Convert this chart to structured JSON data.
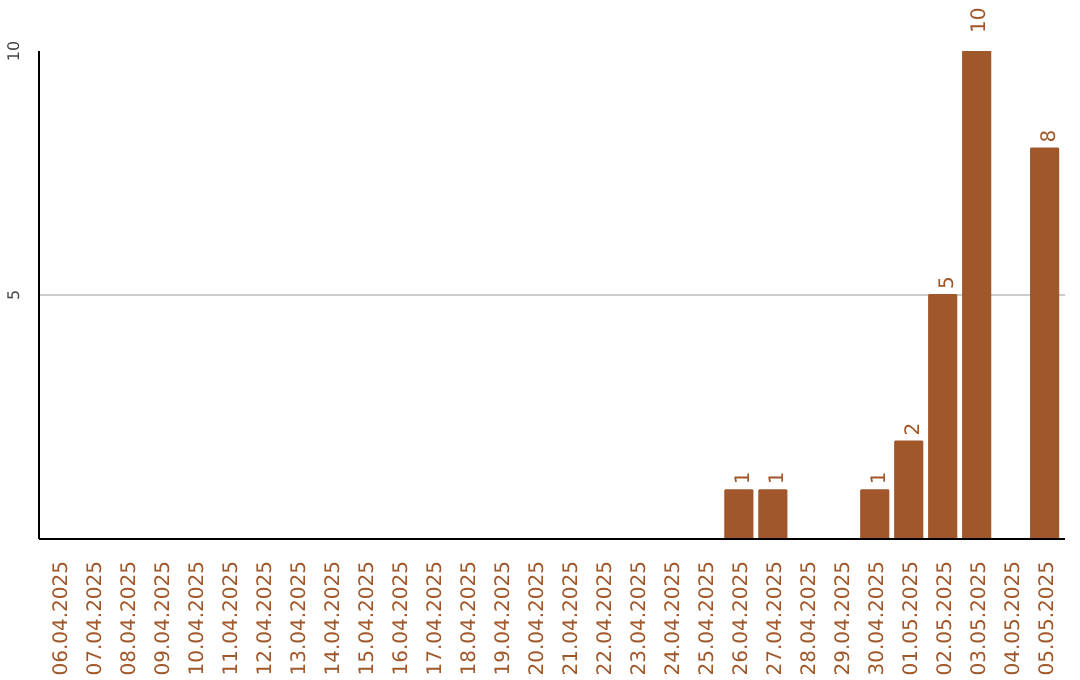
{
  "chart_data": {
    "type": "bar",
    "categories": [
      "06.04.2025",
      "07.04.2025",
      "08.04.2025",
      "09.04.2025",
      "10.04.2025",
      "11.04.2025",
      "12.04.2025",
      "13.04.2025",
      "14.04.2025",
      "15.04.2025",
      "16.04.2025",
      "17.04.2025",
      "18.04.2025",
      "19.04.2025",
      "20.04.2025",
      "21.04.2025",
      "22.04.2025",
      "23.04.2025",
      "24.04.2025",
      "25.04.2025",
      "26.04.2025",
      "27.04.2025",
      "28.04.2025",
      "29.04.2025",
      "30.04.2025",
      "01.05.2025",
      "02.05.2025",
      "03.05.2025",
      "04.05.2025",
      "05.05.2025"
    ],
    "values": [
      0,
      0,
      0,
      0,
      0,
      0,
      0,
      0,
      0,
      0,
      0,
      0,
      0,
      0,
      0,
      0,
      0,
      0,
      0,
      0,
      1,
      1,
      0,
      0,
      1,
      2,
      5,
      10,
      0,
      8
    ],
    "value_labels": [
      null,
      null,
      null,
      null,
      null,
      null,
      null,
      null,
      null,
      null,
      null,
      null,
      null,
      null,
      null,
      null,
      null,
      null,
      null,
      null,
      "1",
      "1",
      null,
      null,
      "1",
      "2",
      "5",
      "10",
      null,
      "8"
    ],
    "color": "#a0572a",
    "ylim": [
      0,
      10
    ],
    "yticks": [
      5,
      10
    ],
    "grid": "y"
  }
}
